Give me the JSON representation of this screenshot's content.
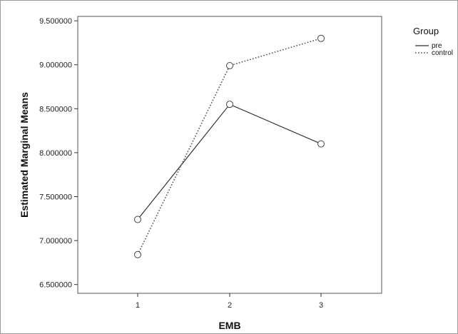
{
  "chart_data": {
    "type": "line",
    "title": "",
    "xlabel": "EMB",
    "ylabel": "Estimated Marginal Means",
    "categories": [
      "1",
      "2",
      "3"
    ],
    "ylim": [
      6.4,
      9.55
    ],
    "yticks": [
      "9.500000",
      "9.000000",
      "8.500000",
      "8.000000",
      "7.500000",
      "7.000000",
      "6.500000"
    ],
    "ytick_values": [
      9.5,
      9.0,
      8.5,
      8.0,
      7.5,
      7.0,
      6.5
    ],
    "grid": false,
    "legend": {
      "title": "Group",
      "position": "top-right"
    },
    "series": [
      {
        "name": "pre",
        "values": [
          7.24,
          8.55,
          8.1
        ],
        "style": "solid",
        "color": "#333333"
      },
      {
        "name": "control",
        "values": [
          6.84,
          8.99,
          9.3
        ],
        "style": "dotted",
        "color": "#555555"
      }
    ]
  }
}
